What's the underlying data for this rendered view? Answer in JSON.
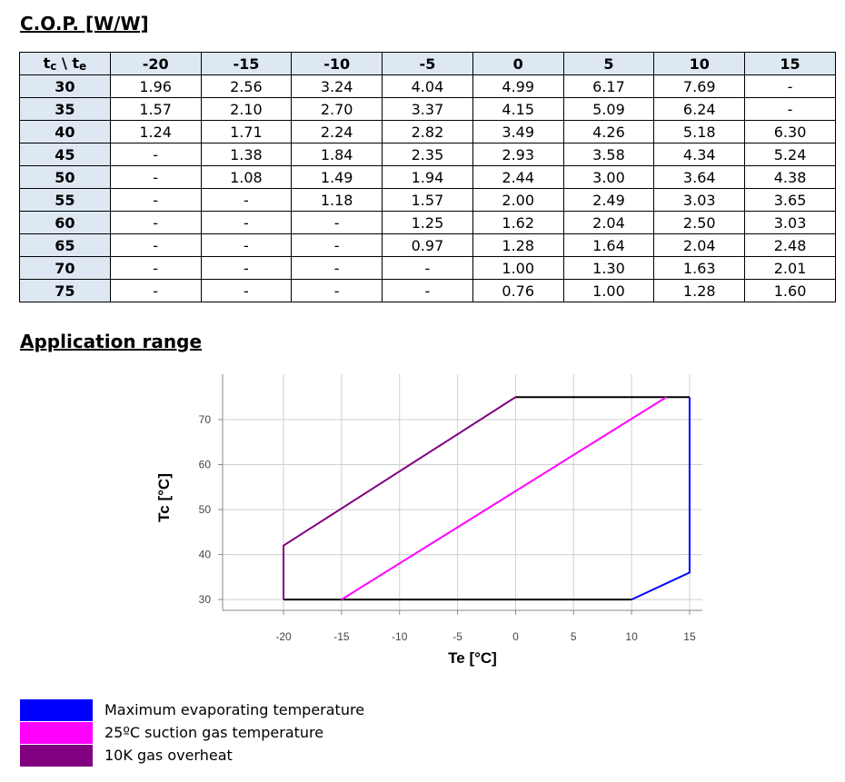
{
  "heading_cop": "C.O.P. [W/W]",
  "table": {
    "corner": [
      {
        "text": "t"
      },
      {
        "sub": "c"
      },
      {
        "text": " \\ t"
      },
      {
        "sub": "e"
      }
    ],
    "columns": [
      "-20",
      "-15",
      "-10",
      "-5",
      "0",
      "5",
      "10",
      "15"
    ],
    "rows": [
      [
        "30",
        "1.96",
        "2.56",
        "3.24",
        "4.04",
        "4.99",
        "6.17",
        "7.69",
        "-"
      ],
      [
        "35",
        "1.57",
        "2.10",
        "2.70",
        "3.37",
        "4.15",
        "5.09",
        "6.24",
        "-"
      ],
      [
        "40",
        "1.24",
        "1.71",
        "2.24",
        "2.82",
        "3.49",
        "4.26",
        "5.18",
        "6.30"
      ],
      [
        "45",
        "-",
        "1.38",
        "1.84",
        "2.35",
        "2.93",
        "3.58",
        "4.34",
        "5.24"
      ],
      [
        "50",
        "-",
        "1.08",
        "1.49",
        "1.94",
        "2.44",
        "3.00",
        "3.64",
        "4.38"
      ],
      [
        "55",
        "-",
        "-",
        "1.18",
        "1.57",
        "2.00",
        "2.49",
        "3.03",
        "3.65"
      ],
      [
        "60",
        "-",
        "-",
        "-",
        "1.25",
        "1.62",
        "2.04",
        "2.50",
        "3.03"
      ],
      [
        "65",
        "-",
        "-",
        "-",
        "0.97",
        "1.28",
        "1.64",
        "2.04",
        "2.48"
      ],
      [
        "70",
        "-",
        "-",
        "-",
        "-",
        "1.00",
        "1.30",
        "1.63",
        "2.01"
      ],
      [
        "75",
        "-",
        "-",
        "-",
        "-",
        "0.76",
        "1.00",
        "1.28",
        "1.60"
      ]
    ]
  },
  "heading_range": "Application range",
  "chart_data": {
    "type": "line",
    "x_label": "Te [°C]",
    "y_label": "Tc [°C]",
    "xlim": [
      -25.25,
      16.1
    ],
    "ylim": [
      27.6,
      80.1
    ],
    "xticks": [
      -20,
      -15,
      -10,
      -5,
      0,
      5,
      10,
      15
    ],
    "yticks": [
      30,
      40,
      50,
      60,
      70
    ],
    "grid": true,
    "series": [
      {
        "color": "#000000",
        "x": [
          -20,
          10
        ],
        "values": [
          30,
          30
        ]
      },
      {
        "color": "#000000",
        "x": [
          0,
          15
        ],
        "values": [
          75,
          75
        ]
      },
      {
        "name": "Maximum evaporating temperature",
        "color": "#0000ff",
        "x": [
          10,
          15,
          15
        ],
        "values": [
          30,
          36,
          75
        ]
      },
      {
        "name": "25ºC suction gas temperature",
        "color": "#ff00ff",
        "x": [
          -15,
          13
        ],
        "values": [
          30,
          75
        ]
      },
      {
        "name": "10K gas overheat",
        "color": "#800080",
        "x": [
          0,
          -20,
          -20
        ],
        "values": [
          75,
          42,
          30
        ]
      }
    ]
  }
}
